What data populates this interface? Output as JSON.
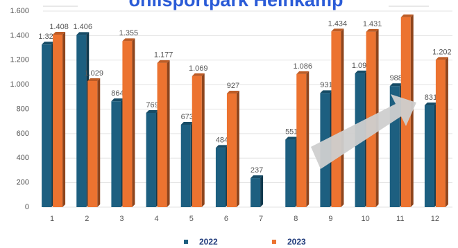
{
  "chart_data": {
    "type": "bar",
    "title": "onlisportpark Heinkamp",
    "categories": [
      "1",
      "2",
      "3",
      "4",
      "5",
      "6",
      "7",
      "8",
      "9",
      "10",
      "11",
      "12"
    ],
    "series": [
      {
        "name": "2022",
        "color": "#1d5f80",
        "values": [
          1327,
          1406,
          864,
          769,
          673,
          484,
          237,
          551,
          931,
          1092,
          988,
          831
        ],
        "value_labels": [
          "1.327",
          "1.406",
          "864",
          "769",
          "673",
          "484",
          "237",
          "551",
          "931",
          "1.092",
          "988",
          "831"
        ]
      },
      {
        "name": "2023",
        "color": "#ec7330",
        "values": [
          1408,
          1029,
          1355,
          1177,
          1069,
          927,
          null,
          1086,
          1434,
          1431,
          1550,
          1202
        ],
        "value_labels": [
          "1.408",
          "1.029",
          "1.355",
          "1.177",
          "1.069",
          "927",
          null,
          "1.086",
          "1.434",
          "1.431",
          null,
          "1.202"
        ]
      }
    ],
    "ylim": [
      0,
      1600
    ],
    "yticks": [
      0,
      200,
      400,
      600,
      800,
      {
        "value": 1000,
        "label": "1.000"
      },
      {
        "value": 1200,
        "label": "1.200"
      },
      {
        "value": 1400,
        "label": "1.400"
      },
      {
        "value": 1600,
        "label": "1.600"
      }
    ],
    "grid": true
  }
}
